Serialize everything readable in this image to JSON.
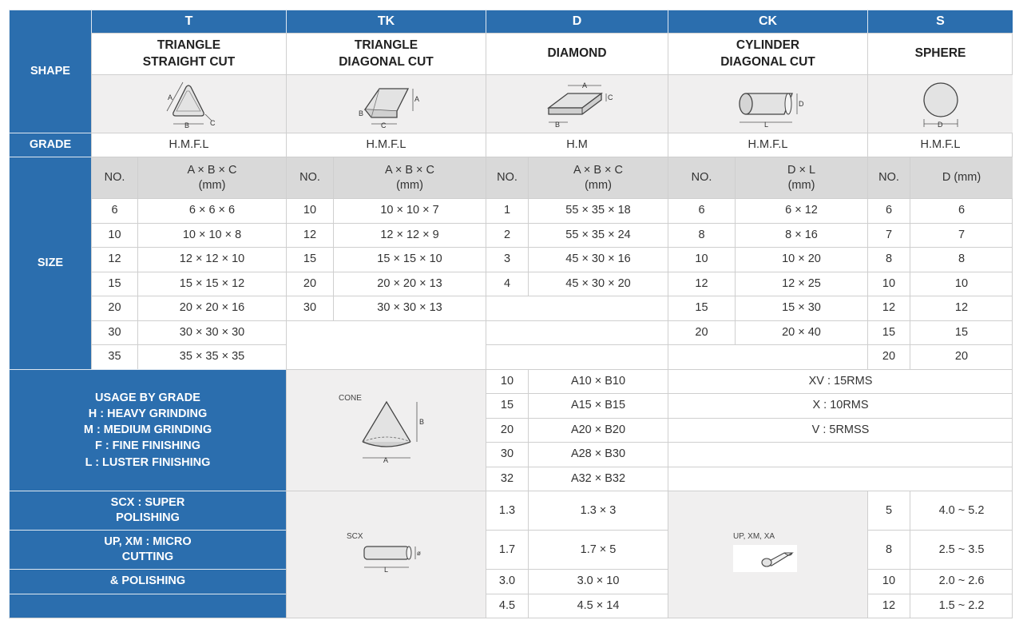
{
  "columns": [
    {
      "code": "T",
      "name": "TRIANGLE\nSTRAIGHT CUT",
      "grade": "H.M.F.L"
    },
    {
      "code": "TK",
      "name": "TRIANGLE\nDIAGONAL CUT",
      "grade": "H.M.F.L"
    },
    {
      "code": "D",
      "name": "DIAMOND",
      "grade": "H.M"
    },
    {
      "code": "CK",
      "name": "CYLINDER\nDIAGONAL CUT",
      "grade": "H.M.F.L"
    },
    {
      "code": "S",
      "name": "SPHERE",
      "grade": "H.M.F.L"
    }
  ],
  "row_labels": {
    "shape": "SHAPE",
    "grade": "GRADE",
    "size": "SIZE"
  },
  "size_headers": {
    "no": "NO.",
    "t": "A × B × C\n(mm)",
    "tk": "A × B × C\n(mm)",
    "d": "A × B × C\n(mm)",
    "ck": "D × L\n(mm)",
    "s": "D (mm)"
  },
  "sizes": {
    "t": [
      [
        "6",
        "6 × 6 × 6"
      ],
      [
        "10",
        "10 × 10 × 8"
      ],
      [
        "12",
        "12 × 12 × 10"
      ],
      [
        "15",
        "15 × 15 × 12"
      ],
      [
        "20",
        "20 × 20 × 16"
      ],
      [
        "30",
        "30 × 30 × 30"
      ],
      [
        "35",
        "35 × 35 × 35"
      ]
    ],
    "tk": [
      [
        "10",
        "10 × 10 × 7"
      ],
      [
        "12",
        "12 × 12 × 9"
      ],
      [
        "15",
        "15 × 15 × 10"
      ],
      [
        "20",
        "20 × 20 × 13"
      ],
      [
        "30",
        "30 × 30 × 13"
      ]
    ],
    "d": [
      [
        "1",
        "55 × 35 × 18"
      ],
      [
        "2",
        "55 × 35 × 24"
      ],
      [
        "3",
        "45 × 30 × 16"
      ],
      [
        "4",
        "45 × 30 × 20"
      ]
    ],
    "ck": [
      [
        "6",
        "6 × 12"
      ],
      [
        "8",
        "8 × 16"
      ],
      [
        "10",
        "10 × 20"
      ],
      [
        "12",
        "12 × 25"
      ],
      [
        "15",
        "15 × 30"
      ],
      [
        "20",
        "20 × 40"
      ]
    ],
    "s": [
      [
        "6",
        "6"
      ],
      [
        "7",
        "7"
      ],
      [
        "8",
        "8"
      ],
      [
        "10",
        "10"
      ],
      [
        "12",
        "12"
      ],
      [
        "15",
        "15"
      ],
      [
        "20",
        "20"
      ]
    ]
  },
  "usage": {
    "text": "USAGE BY GRADE\nH : HEAVY GRINDING\nM : MEDIUM GRINDING\nF : FINE FINISHING\nL : LUSTER FINISHING"
  },
  "cone": {
    "label": "CONE",
    "rows": [
      [
        "10",
        "A10 × B10"
      ],
      [
        "15",
        "A15 × B15"
      ],
      [
        "20",
        "A20 × B20"
      ],
      [
        "30",
        "A28 × B30"
      ],
      [
        "32",
        "A32 × B32"
      ]
    ]
  },
  "finish": [
    "XV : 15RMS",
    "X : 10RMS",
    "V : 5RMSS"
  ],
  "polish": {
    "l1": "SCX : SUPER\nPOLISHING",
    "l2": "UP, XM : MICRO\nCUTTING",
    "l3": "& POLISHING"
  },
  "scx": {
    "label": "SCX",
    "rows": [
      [
        "1.3",
        "1.3 × 3"
      ],
      [
        "1.7",
        "1.7 × 5"
      ],
      [
        "3.0",
        "3.0 × 10"
      ],
      [
        "4.5",
        "4.5 × 14"
      ]
    ]
  },
  "up": {
    "label": "UP,  XM,  XA",
    "rows": [
      [
        "5",
        "4.0 ~ 5.2"
      ],
      [
        "8",
        "2.5 ~ 3.5"
      ],
      [
        "10",
        "2.0 ~ 2.6"
      ],
      [
        "12",
        "1.5 ~ 2.2"
      ]
    ]
  },
  "dim_labels": {
    "a": "A",
    "b": "B",
    "c": "C",
    "d": "D",
    "l": "L",
    "phi": "ø"
  },
  "colors": {
    "header_blue": "#2b6eae",
    "subheader_gray": "#d9d9d9",
    "image_bg": "#f0efef",
    "border": "#cfcfcf"
  }
}
